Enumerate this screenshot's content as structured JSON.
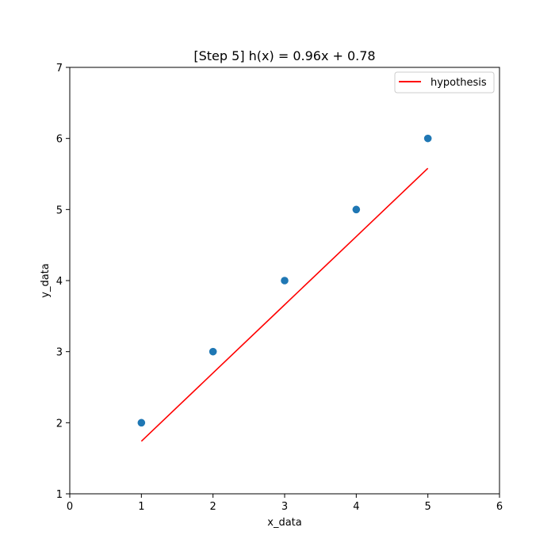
{
  "chart_data": {
    "type": "scatter",
    "title": "[Step 5] h(x) = 0.96x + 0.78",
    "xlabel": "x_data",
    "ylabel": "y_data",
    "xlim": [
      0,
      6
    ],
    "ylim": [
      1,
      7
    ],
    "x_ticks": [
      "0",
      "1",
      "2",
      "3",
      "4",
      "5",
      "6"
    ],
    "y_ticks": [
      "1",
      "2",
      "3",
      "4",
      "5",
      "6",
      "7"
    ],
    "grid": false,
    "legend_position": "top-right",
    "points": {
      "x": [
        1,
        2,
        3,
        4,
        5
      ],
      "y": [
        2,
        3,
        4,
        5,
        6
      ],
      "color": "#1f77b4"
    },
    "series": [
      {
        "name": "hypothesis",
        "type": "line",
        "x": [
          1,
          2,
          3,
          4,
          5
        ],
        "y": [
          1.74,
          2.7,
          3.66,
          4.62,
          5.58
        ],
        "color": "#ff0000"
      }
    ]
  }
}
